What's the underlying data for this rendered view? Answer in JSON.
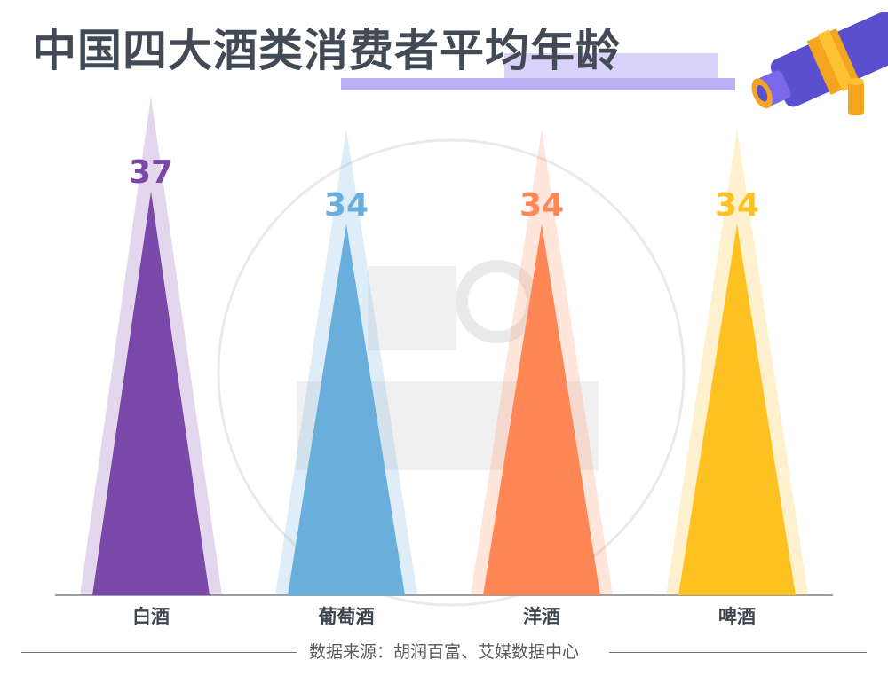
{
  "title": "中国四大酒类消费者平均年龄",
  "source": "数据来源：胡润百富、艾媒数据中心",
  "colors": {
    "title": "#414a55",
    "baijiu": "#7a48a8",
    "wine": "#6aaedc",
    "foreign": "#ff8755",
    "beer": "#fdc122"
  },
  "chart_data": {
    "type": "bar",
    "title": "中国四大酒类消费者平均年龄",
    "xlabel": "",
    "ylabel": "",
    "categories": [
      "白酒",
      "葡萄酒",
      "洋酒",
      "啤酒"
    ],
    "values": [
      37,
      34,
      34,
      34
    ],
    "value_labels": [
      "37",
      "34",
      "34",
      "34"
    ],
    "ylim": [
      0,
      40
    ],
    "grid": false,
    "legend": "none",
    "mark_shape": "triangle"
  }
}
